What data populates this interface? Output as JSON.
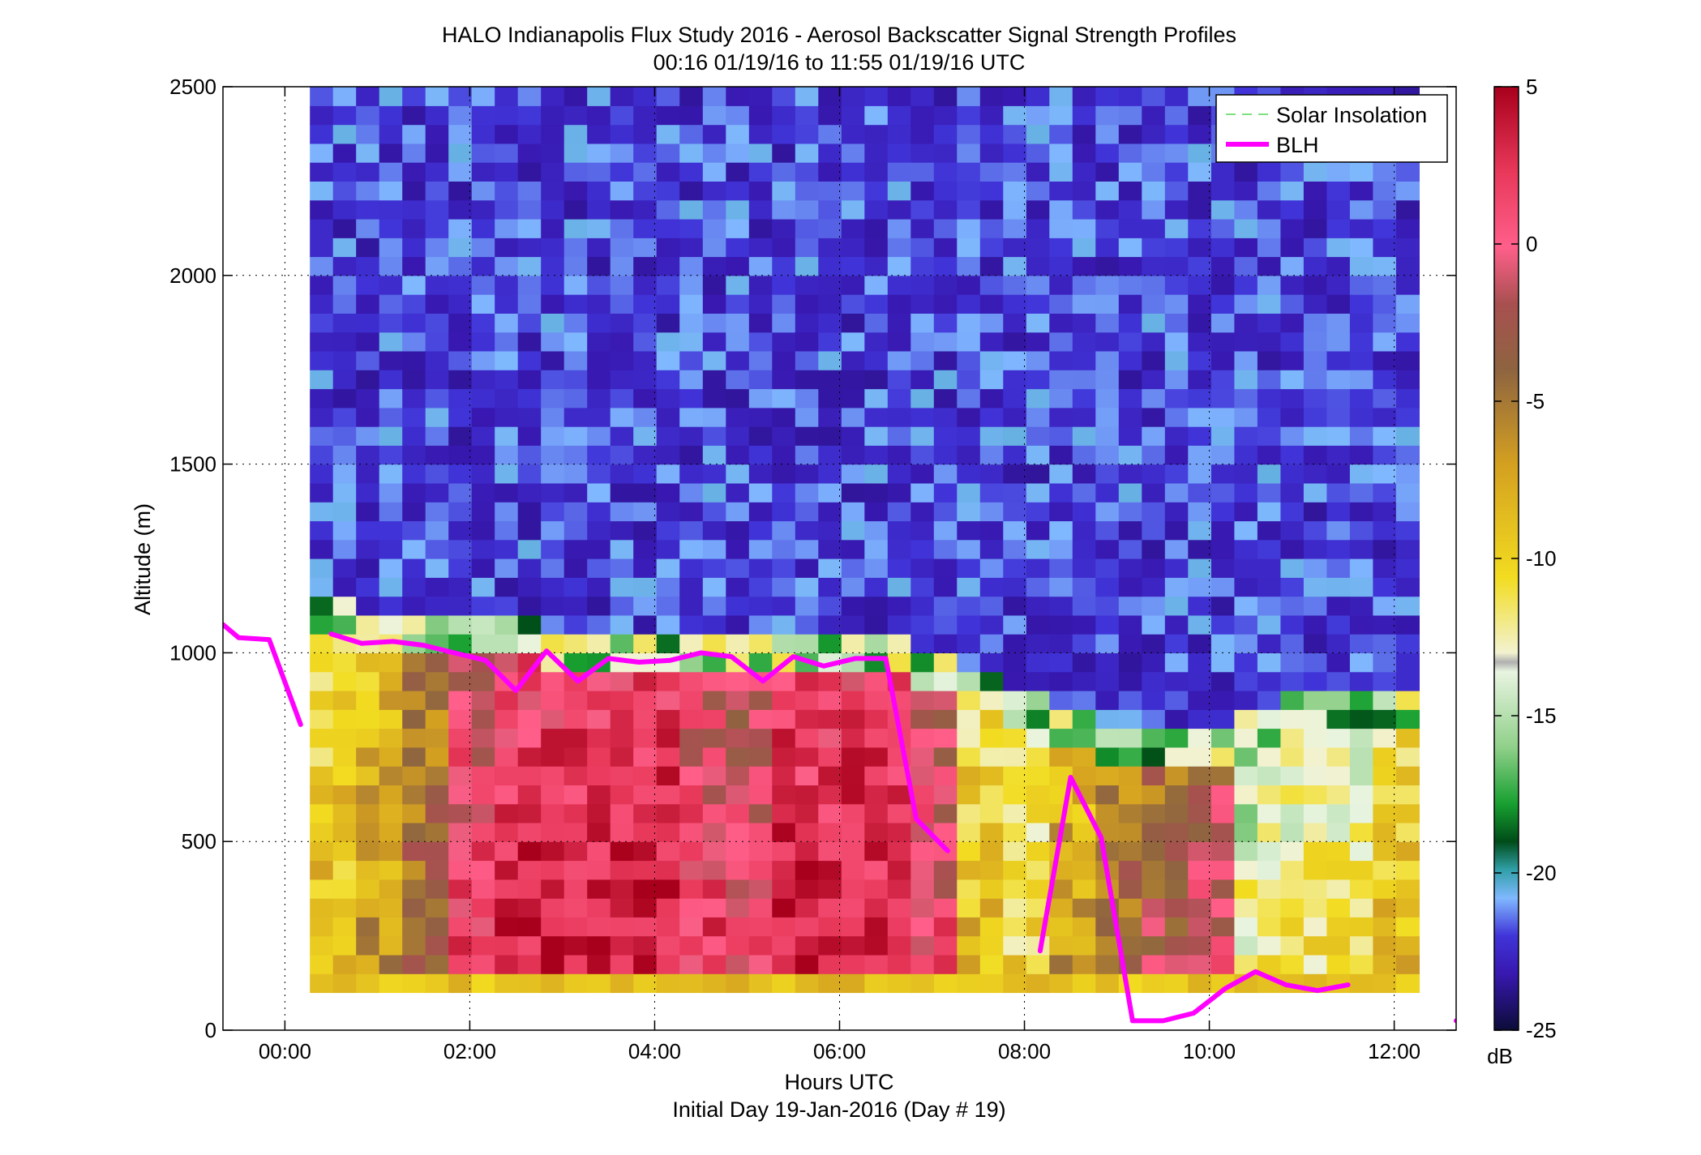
{
  "figure": {
    "title": "HALO Indianapolis Flux Study 2016 - Aerosol Backscatter Signal Strength Profiles",
    "subtitle": "00:16 01/19/16 to 11:55 01/19/16  UTC",
    "xlabel": "Hours UTC",
    "xsublabel": "Initial Day 19-Jan-2016 (Day # 19)",
    "ylabel": "Altitude (m)",
    "colorbar_label": "dB"
  },
  "chart_data": {
    "type": "heatmap",
    "title": "HALO Indianapolis Flux Study 2016 - Aerosol Backscatter Signal Strength Profiles",
    "subtitle": "00:16 01/19/16 to 11:55 01/19/16  UTC",
    "xlabel": "Hours UTC",
    "ylabel": "Altitude (m)",
    "x_unit": "hours UTC",
    "xlim": [
      -0.67,
      12.67
    ],
    "ylim": [
      0,
      2500
    ],
    "x_ticks": [
      0,
      2,
      4,
      6,
      8,
      10,
      12
    ],
    "x_tick_labels": [
      "00:00",
      "02:00",
      "04:00",
      "06:00",
      "08:00",
      "10:00",
      "12:00"
    ],
    "y_ticks": [
      0,
      500,
      1000,
      1500,
      2000,
      2500
    ],
    "y_tick_labels": [
      "0",
      "500",
      "1000",
      "1500",
      "2000",
      "2500"
    ],
    "grid": true,
    "legend_position": "top-right",
    "colorbar": {
      "label": "dB",
      "range": [
        -25,
        5
      ],
      "ticks": [
        5,
        0,
        -5,
        -10,
        -15,
        -20,
        -25
      ],
      "tick_labels": [
        "5",
        "0",
        "-5",
        "-10",
        "-15",
        "-20",
        "-25"
      ],
      "colormap": "dark purple to blue, teal, green, pale, yellow, orange, brown, pink, dark red"
    },
    "heatmap": {
      "time_start_hours": 0.27,
      "time_end_hours": 11.92,
      "altitude_bottom_m": 100,
      "altitude_top_m": 2500,
      "description": "Backscatter signal strength in dB; strong returns (-10 to 5 dB) below ~1000 m, weak returns (-25 to -20 dB) above",
      "column_times_hours": [
        0.27,
        0.77,
        1.27,
        1.77,
        2.27,
        2.77,
        3.27,
        3.77,
        4.27,
        4.77,
        5.27,
        5.77,
        6.27,
        6.77,
        7.27,
        7.77,
        8.27,
        8.77,
        9.27,
        9.77,
        10.27,
        10.77,
        11.27,
        11.77
      ],
      "aerosol_layer_top_m": [
        1080,
        1050,
        1060,
        1040,
        1030,
        1010,
        1000,
        990,
        1010,
        1000,
        990,
        1000,
        1000,
        960,
        900,
        840,
        800,
        760,
        730,
        760,
        800,
        820,
        820,
        820
      ],
      "surface_layer_db_profile": [
        -8,
        -6,
        -3,
        2,
        4,
        4,
        4,
        4,
        2,
        1,
        4,
        4,
        4,
        1,
        -8,
        -10,
        -6,
        -3,
        -2,
        0,
        -12,
        -11,
        -11,
        -8
      ],
      "upper_layer_db": -22
    },
    "series": [
      {
        "name": "Solar Insolation",
        "color": "#7ee07e",
        "style": "dashed",
        "x": [],
        "y": []
      },
      {
        "name": "BLH",
        "color": "#ff00ff",
        "style": "solid",
        "segments": [
          {
            "x": [
              -0.67,
              -0.5,
              -0.17,
              0.17
            ],
            "y": [
              1075,
              1040,
              1035,
              810
            ]
          },
          {
            "x": [
              0.5,
              0.83,
              1.17,
              1.5,
              1.83,
              2.17,
              2.5,
              2.83,
              3.17,
              3.5,
              3.83,
              4.17,
              4.5,
              4.83,
              5.17,
              5.5,
              5.83,
              6.17,
              6.5,
              6.83,
              7.17
            ],
            "y": [
              1050,
              1025,
              1030,
              1020,
              1000,
              980,
              900,
              1005,
              925,
              985,
              975,
              980,
              1000,
              990,
              925,
              990,
              965,
              985,
              985,
              560,
              475
            ]
          },
          {
            "x": [
              8.17,
              8.5,
              8.83,
              9.17,
              9.5,
              9.83,
              10.17,
              10.5,
              10.83,
              11.17,
              11.5
            ],
            "y": [
              210,
              670,
              510,
              25,
              25,
              45,
              110,
              155,
              120,
              105,
              120
            ]
          },
          {
            "x": [
              12.67,
              12.83
            ],
            "y": [
              25,
              25
            ]
          }
        ]
      }
    ]
  }
}
